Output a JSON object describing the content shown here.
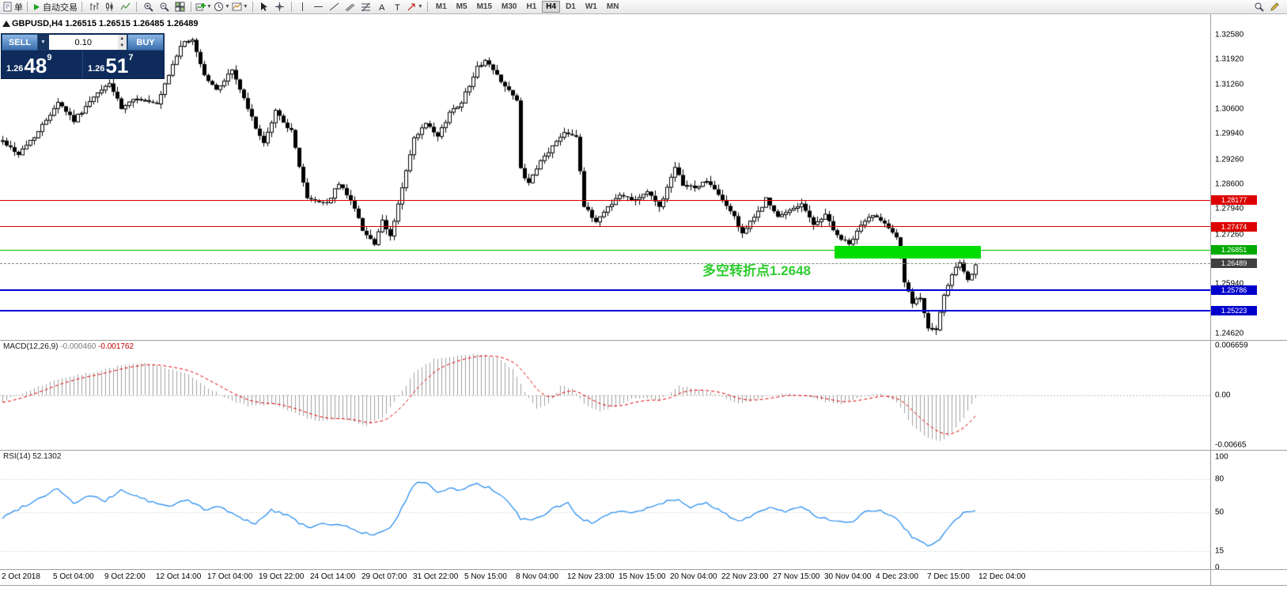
{
  "toolbar": {
    "new_order_label": "单",
    "autotrading_label": "自动交易",
    "timeframes": [
      "M1",
      "M5",
      "M15",
      "M30",
      "H1",
      "H4",
      "D1",
      "W1",
      "MN"
    ],
    "active_timeframe": "H4",
    "icon_groups": [
      [
        "bar-chart-icon",
        "candlestick-icon",
        "line-chart-icon"
      ],
      [
        "zoom-in-icon",
        "zoom-out-icon",
        "tile-windows-icon"
      ],
      [
        "add-indicator-icon",
        "periods-icon",
        "templates-icon"
      ],
      [
        "cursor-icon",
        "crosshair-icon"
      ],
      [
        "vline-icon",
        "hline-icon",
        "trendline-icon",
        "channel-icon",
        "fibonacci-icon",
        "text-icon",
        "label-icon",
        "arrow-icon"
      ]
    ],
    "right_icons": [
      "search-icon",
      "edit-icon"
    ]
  },
  "chart": {
    "ohlc_header": "GBPUSD,H4 1.26515 1.26515 1.26485 1.26489",
    "trade_panel": {
      "sell_label": "SELL",
      "buy_label": "BUY",
      "lot": "0.10",
      "sell_price_prefix": "1.26",
      "sell_price_big": "48",
      "sell_price_sup": "9",
      "buy_price_prefix": "1.26",
      "buy_price_big": "51",
      "buy_price_sup": "7"
    },
    "annotation": {
      "text": "多空转折点1.2648",
      "color": "#2ECC2E"
    },
    "hlines": [
      {
        "name": "resistance-line-1",
        "price": 1.28177,
        "color": "#DD0000",
        "thickness": 1
      },
      {
        "name": "resistance-line-2",
        "price": 1.27474,
        "color": "#DD0000",
        "thickness": 1
      },
      {
        "name": "pivot-line",
        "price": 1.26851,
        "color": "#00BE00",
        "thickness": 1
      },
      {
        "name": "support-line-1",
        "price": 1.25786,
        "color": "#0000DD",
        "thickness": 2
      },
      {
        "name": "support-line-2",
        "price": 1.25223,
        "color": "#0000DD",
        "thickness": 2
      }
    ],
    "rectangle": {
      "price_top": 1.2696,
      "price_bottom": 1.2662,
      "bar_start": 211,
      "bar_end": 247,
      "color": "#00DC00"
    },
    "current_price": "1.26489",
    "axis_badges": [
      {
        "label": "1.28177",
        "price": 1.28177,
        "bg": "#DD0000"
      },
      {
        "label": "1.27474",
        "price": 1.27474,
        "bg": "#DD0000"
      },
      {
        "label": "1.26851",
        "price": 1.26851,
        "bg": "#00AA00"
      },
      {
        "label": "1.26489",
        "price": 1.26489,
        "bg": "#404040"
      },
      {
        "label": "1.25786",
        "price": 1.25786,
        "bg": "#0000CC"
      },
      {
        "label": "1.25223",
        "price": 1.25223,
        "bg": "#0000CC"
      }
    ],
    "axis_labels": [
      {
        "label": "1.32580",
        "price": 1.3258
      },
      {
        "label": "1.31920",
        "price": 1.3192
      },
      {
        "label": "1.31260",
        "price": 1.3126
      },
      {
        "label": "1.30600",
        "price": 1.306
      },
      {
        "label": "1.29940",
        "price": 1.2994
      },
      {
        "label": "1.29260",
        "price": 1.2926
      },
      {
        "label": "1.28600",
        "price": 1.286
      },
      {
        "label": "1.27940",
        "price": 1.2794
      },
      {
        "label": "1.27260",
        "price": 1.2726
      },
      {
        "label": "1.25940",
        "price": 1.2594
      },
      {
        "label": "1.24620",
        "price": 1.2462
      }
    ]
  },
  "macd": {
    "label": "MACD(12,26,9)",
    "value_main": "-0.000460",
    "value_signal": "-0.001762",
    "axis_labels": [
      {
        "label": "0.006659",
        "value": 0.006659
      },
      {
        "label": "0.00",
        "value": 0
      },
      {
        "label": "-0.00665",
        "value": -0.00665
      }
    ]
  },
  "rsi": {
    "label": "RSI(14)",
    "value": "52.1302",
    "levels": [
      80,
      50,
      15
    ],
    "axis_labels": [
      {
        "label": "100",
        "value": 100
      },
      {
        "label": "80",
        "value": 80
      },
      {
        "label": "50",
        "value": 50
      },
      {
        "label": "15",
        "value": 15
      },
      {
        "label": "0",
        "value": 0
      }
    ]
  },
  "time_axis": {
    "labels": [
      "2 Oct 2018",
      "5 Oct 04:00",
      "9 Oct 22:00",
      "12 Oct 14:00",
      "17 Oct 04:00",
      "19 Oct 22:00",
      "24 Oct 14:00",
      "29 Oct 07:00",
      "31 Oct 22:00",
      "5 Nov 15:00",
      "8 Nov 04:00",
      "12 Nov 23:00",
      "15 Nov 15:00",
      "20 Nov 04:00",
      "22 Nov 23:00",
      "27 Nov 15:00",
      "30 Nov 04:00",
      "4 Dec 23:00",
      "7 Dec 15:00",
      "12 Dec 04:00"
    ]
  },
  "chart_data": {
    "type": "candlestick",
    "symbol": "GBPUSD",
    "timeframe": "H4",
    "bars": 247,
    "price_axis": {
      "top_price": 1.3258,
      "bottom_price": 1.2462
    },
    "close_anchors": [
      [
        0,
        1.2975
      ],
      [
        4,
        1.294
      ],
      [
        9,
        1.3
      ],
      [
        14,
        1.308
      ],
      [
        18,
        1.303
      ],
      [
        23,
        1.309
      ],
      [
        27,
        1.313
      ],
      [
        30,
        1.306
      ],
      [
        34,
        1.309
      ],
      [
        39,
        1.307
      ],
      [
        45,
        1.323
      ],
      [
        48,
        1.3245
      ],
      [
        51,
        1.315
      ],
      [
        54,
        1.311
      ],
      [
        58,
        1.3165
      ],
      [
        62,
        1.306
      ],
      [
        66,
        1.2965
      ],
      [
        69,
        1.3055
      ],
      [
        73,
        1.3
      ],
      [
        77,
        1.282
      ],
      [
        82,
        1.281
      ],
      [
        85,
        1.286
      ],
      [
        88,
        1.282
      ],
      [
        91,
        1.274
      ],
      [
        94,
        1.27
      ],
      [
        96,
        1.276
      ],
      [
        98,
        1.272
      ],
      [
        101,
        1.285
      ],
      [
        104,
        1.298
      ],
      [
        107,
        1.302
      ],
      [
        110,
        1.2985
      ],
      [
        113,
        1.305
      ],
      [
        116,
        1.308
      ],
      [
        120,
        1.317
      ],
      [
        122,
        1.319
      ],
      [
        125,
        1.315
      ],
      [
        128,
        1.311
      ],
      [
        130,
        1.308
      ],
      [
        131,
        1.29
      ],
      [
        133,
        1.286
      ],
      [
        136,
        1.292
      ],
      [
        139,
        1.296
      ],
      [
        142,
        1.3
      ],
      [
        145,
        1.299
      ],
      [
        147,
        1.28
      ],
      [
        150,
        1.276
      ],
      [
        153,
        1.28
      ],
      [
        156,
        1.283
      ],
      [
        160,
        1.282
      ],
      [
        163,
        1.284
      ],
      [
        166,
        1.28
      ],
      [
        170,
        1.29
      ],
      [
        172,
        1.286
      ],
      [
        175,
        1.285
      ],
      [
        178,
        1.287
      ],
      [
        181,
        1.283
      ],
      [
        184,
        1.279
      ],
      [
        187,
        1.273
      ],
      [
        190,
        1.277
      ],
      [
        193,
        1.282
      ],
      [
        196,
        1.277
      ],
      [
        199,
        1.279
      ],
      [
        202,
        1.281
      ],
      [
        205,
        1.275
      ],
      [
        208,
        1.278
      ],
      [
        211,
        1.272
      ],
      [
        214,
        1.27
      ],
      [
        217,
        1.275
      ],
      [
        220,
        1.278
      ],
      [
        223,
        1.276
      ],
      [
        226,
        1.272
      ],
      [
        228,
        1.26
      ],
      [
        230,
        1.254
      ],
      [
        232,
        1.256
      ],
      [
        234,
        1.248
      ],
      [
        236,
        1.247
      ],
      [
        238,
        1.256
      ],
      [
        240,
        1.262
      ],
      [
        242,
        1.265
      ],
      [
        244,
        1.26
      ],
      [
        246,
        1.2649
      ]
    ],
    "macd_anchors": [
      [
        0,
        -0.0008
      ],
      [
        6,
        0.0005
      ],
      [
        14,
        0.0022
      ],
      [
        22,
        0.003
      ],
      [
        30,
        0.004
      ],
      [
        37,
        0.0043
      ],
      [
        46,
        0.003
      ],
      [
        52,
        0.001
      ],
      [
        57,
        -0.0005
      ],
      [
        62,
        -0.0015
      ],
      [
        68,
        -0.0012
      ],
      [
        74,
        -0.0025
      ],
      [
        80,
        -0.0035
      ],
      [
        86,
        -0.0032
      ],
      [
        92,
        -0.004
      ],
      [
        96,
        -0.003
      ],
      [
        101,
        0.0005
      ],
      [
        104,
        0.003
      ],
      [
        109,
        0.0048
      ],
      [
        114,
        0.0052
      ],
      [
        120,
        0.0055
      ],
      [
        125,
        0.005
      ],
      [
        129,
        0.0035
      ],
      [
        132,
        0.0005
      ],
      [
        135,
        -0.0018
      ],
      [
        138,
        -0.001
      ],
      [
        141,
        0.0012
      ],
      [
        144,
        0.001
      ],
      [
        147,
        -0.0012
      ],
      [
        151,
        -0.0022
      ],
      [
        155,
        -0.0015
      ],
      [
        160,
        -0.0003
      ],
      [
        166,
        -0.0007
      ],
      [
        171,
        0.0012
      ],
      [
        176,
        0.0008
      ],
      [
        181,
        0.0
      ],
      [
        186,
        -0.0012
      ],
      [
        191,
        -0.0005
      ],
      [
        196,
        0.0002
      ],
      [
        202,
        0.0
      ],
      [
        207,
        -0.0008
      ],
      [
        212,
        -0.0012
      ],
      [
        217,
        -0.0003
      ],
      [
        222,
        0.0003
      ],
      [
        226,
        -0.001
      ],
      [
        230,
        -0.004
      ],
      [
        234,
        -0.0058
      ],
      [
        237,
        -0.0062
      ],
      [
        240,
        -0.005
      ],
      [
        243,
        -0.003
      ],
      [
        246,
        -0.00046
      ]
    ],
    "rsi_anchors": [
      [
        0,
        45
      ],
      [
        5,
        55
      ],
      [
        9,
        62
      ],
      [
        14,
        72
      ],
      [
        18,
        58
      ],
      [
        22,
        65
      ],
      [
        26,
        60
      ],
      [
        30,
        70
      ],
      [
        33,
        66
      ],
      [
        37,
        60
      ],
      [
        42,
        55
      ],
      [
        47,
        62
      ],
      [
        51,
        52
      ],
      [
        55,
        55
      ],
      [
        60,
        45
      ],
      [
        64,
        40
      ],
      [
        68,
        52
      ],
      [
        72,
        48
      ],
      [
        77,
        36
      ],
      [
        82,
        40
      ],
      [
        86,
        38
      ],
      [
        91,
        32
      ],
      [
        94,
        29
      ],
      [
        98,
        35
      ],
      [
        102,
        60
      ],
      [
        104,
        75
      ],
      [
        107,
        78
      ],
      [
        110,
        68
      ],
      [
        113,
        72
      ],
      [
        116,
        70
      ],
      [
        120,
        76
      ],
      [
        123,
        72
      ],
      [
        126,
        65
      ],
      [
        129,
        55
      ],
      [
        131,
        44
      ],
      [
        134,
        42
      ],
      [
        137,
        48
      ],
      [
        140,
        55
      ],
      [
        143,
        58
      ],
      [
        146,
        45
      ],
      [
        149,
        40
      ],
      [
        152,
        45
      ],
      [
        156,
        52
      ],
      [
        160,
        50
      ],
      [
        164,
        55
      ],
      [
        168,
        60
      ],
      [
        171,
        62
      ],
      [
        174,
        55
      ],
      [
        178,
        58
      ],
      [
        182,
        50
      ],
      [
        186,
        42
      ],
      [
        190,
        48
      ],
      [
        194,
        55
      ],
      [
        198,
        50
      ],
      [
        202,
        55
      ],
      [
        206,
        46
      ],
      [
        210,
        42
      ],
      [
        214,
        40
      ],
      [
        218,
        50
      ],
      [
        222,
        52
      ],
      [
        226,
        45
      ],
      [
        230,
        28
      ],
      [
        234,
        20
      ],
      [
        237,
        25
      ],
      [
        240,
        40
      ],
      [
        243,
        50
      ],
      [
        246,
        52.13
      ]
    ]
  }
}
